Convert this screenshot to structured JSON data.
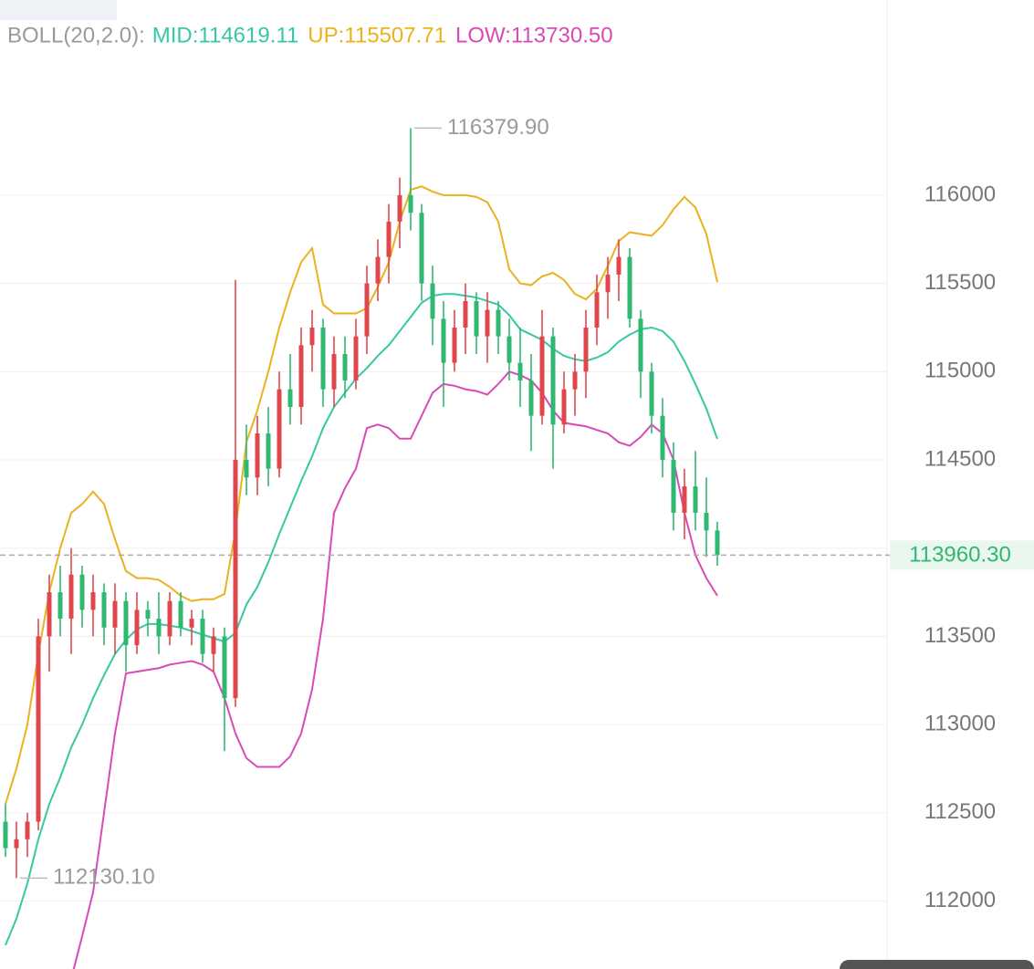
{
  "chart_data": {
    "type": "candlestick",
    "indicator": "BOLL(20,2.0):",
    "ylim": [
      111615,
      117106
    ],
    "yticks": [
      112000,
      112500,
      113000,
      113500,
      114000,
      114500,
      115000,
      115500,
      116000
    ],
    "tick_labels_shown": [
      112000,
      112500,
      113000,
      113500,
      114500,
      115000,
      115500,
      116000
    ],
    "grid": true,
    "up_color": "#e0474c",
    "down_color": "#2fb872",
    "candles": {
      "open": [
        112450,
        112300,
        112350,
        112450,
        113500,
        113750,
        113600,
        113850,
        113650,
        113750,
        113550,
        113700,
        113450,
        113650,
        113600,
        113500,
        113700,
        113550,
        113600,
        113400,
        113500,
        113150,
        114500,
        114400,
        114650,
        114450,
        114900,
        114800,
        115150,
        115250,
        114900,
        115100,
        114950,
        115200,
        115500,
        115650,
        115850,
        116000,
        115900,
        115500,
        115300,
        115050,
        115250,
        115400,
        115200,
        115350,
        115200,
        115050,
        114950,
        114750,
        115200,
        114700,
        114900,
        115000,
        115250,
        115450,
        115550,
        115650,
        115300,
        115000,
        114750,
        114500,
        114200,
        114350,
        114200,
        114100
      ],
      "high": [
        112550,
        112450,
        112500,
        113600,
        113850,
        113900,
        114000,
        113900,
        113850,
        113800,
        113800,
        113750,
        113750,
        113700,
        113750,
        113750,
        113750,
        113650,
        113650,
        113550,
        113550,
        115520,
        114700,
        114750,
        114800,
        115000,
        115100,
        115250,
        115350,
        115300,
        115200,
        115200,
        115300,
        115600,
        115750,
        115950,
        116100,
        116379.9,
        115950,
        115600,
        115400,
        115350,
        115500,
        115450,
        115450,
        115400,
        115300,
        115250,
        115100,
        115350,
        115250,
        115000,
        115100,
        115350,
        115550,
        115650,
        115750,
        115700,
        115350,
        115050,
        114850,
        114600,
        114450,
        114550,
        114400,
        114150
      ],
      "low": [
        112250,
        112130.1,
        112250,
        112400,
        113300,
        113500,
        113400,
        113550,
        113500,
        113450,
        113400,
        113300,
        113400,
        113500,
        113400,
        113450,
        113500,
        113450,
        113350,
        113300,
        112850,
        113100,
        114300,
        114300,
        114350,
        114400,
        114700,
        114700,
        115000,
        114800,
        114800,
        114850,
        114900,
        115100,
        115400,
        115500,
        115700,
        115800,
        115400,
        115150,
        114800,
        115000,
        115100,
        115100,
        115050,
        115100,
        114950,
        114800,
        114550,
        114700,
        114450,
        114650,
        114750,
        114850,
        115150,
        115300,
        115400,
        115250,
        114850,
        114650,
        114400,
        114100,
        114050,
        114100,
        113950,
        113900
      ],
      "close": [
        112300,
        112350,
        112450,
        113500,
        113750,
        113600,
        113850,
        113650,
        113750,
        113550,
        113700,
        113450,
        113650,
        113600,
        113500,
        113700,
        113550,
        113600,
        113400,
        113500,
        113150,
        114500,
        114400,
        114650,
        114450,
        114900,
        114800,
        115150,
        115250,
        114900,
        115100,
        114950,
        115200,
        115500,
        115650,
        115850,
        116000,
        115900,
        115500,
        115300,
        115050,
        115250,
        115400,
        115200,
        115350,
        115200,
        115050,
        114950,
        114750,
        115200,
        114700,
        114900,
        115000,
        115250,
        115450,
        115550,
        115650,
        115300,
        115000,
        114750,
        114500,
        114200,
        114350,
        114200,
        114100,
        113960.3
      ]
    },
    "series": [
      {
        "name": "MID:114619.11",
        "color": "#36c7a5",
        "values": [
          111750,
          111900,
          112100,
          112350,
          112550,
          112700,
          112870,
          113000,
          113150,
          113280,
          113400,
          113480,
          113540,
          113570,
          113570,
          113560,
          113550,
          113530,
          113510,
          113490,
          113470,
          113520,
          113680,
          113780,
          113920,
          114080,
          114230,
          114380,
          114520,
          114680,
          114800,
          114880,
          114960,
          115020,
          115090,
          115150,
          115230,
          115310,
          115390,
          115430,
          115440,
          115440,
          115430,
          115420,
          115400,
          115380,
          115320,
          115240,
          115210,
          115180,
          115130,
          115090,
          115070,
          115060,
          115080,
          115110,
          115170,
          115210,
          115240,
          115250,
          115230,
          115170,
          115060,
          114930,
          114790,
          114619.11
        ]
      },
      {
        "name": "UP:115507.71",
        "color": "#eab21c",
        "values": [
          112550,
          112750,
          113000,
          113400,
          113750,
          114000,
          114200,
          114250,
          114320,
          114250,
          114050,
          113870,
          113830,
          113830,
          113820,
          113780,
          113730,
          113700,
          113710,
          113710,
          113740,
          114100,
          114600,
          114780,
          115000,
          115250,
          115450,
          115620,
          115700,
          115380,
          115330,
          115330,
          115330,
          115360,
          115480,
          115620,
          115850,
          116030,
          116050,
          116020,
          116000,
          116000,
          116000,
          115990,
          115960,
          115850,
          115580,
          115500,
          115490,
          115540,
          115560,
          115520,
          115440,
          115410,
          115470,
          115600,
          115740,
          115790,
          115780,
          115770,
          115830,
          115920,
          115990,
          115930,
          115780,
          115507.71
        ]
      },
      {
        "name": "LOW:113730.50",
        "color": "#d94ab6",
        "values": [
          null,
          null,
          null,
          null,
          null,
          null,
          111560,
          111800,
          112050,
          112500,
          112950,
          113290,
          113300,
          113310,
          113320,
          113340,
          113350,
          113360,
          113340,
          113300,
          113150,
          112950,
          112810,
          112760,
          112760,
          112760,
          112820,
          112950,
          113200,
          113600,
          114200,
          114340,
          114450,
          114680,
          114700,
          114680,
          114620,
          114620,
          114750,
          114880,
          114930,
          114920,
          114900,
          114890,
          114870,
          114930,
          115000,
          114980,
          114950,
          114880,
          114780,
          114710,
          114700,
          114690,
          114670,
          114650,
          114600,
          114580,
          114630,
          114700,
          114650,
          114500,
          114200,
          113960,
          113830,
          113730.5
        ]
      }
    ],
    "annotations": [
      {
        "value": 116379.9,
        "label": "116379.90",
        "index": 37
      },
      {
        "value": 112130.1,
        "label": "112130.10",
        "index": 1
      }
    ],
    "last_price": {
      "value": 113960.3,
      "label": "113960.30"
    }
  }
}
